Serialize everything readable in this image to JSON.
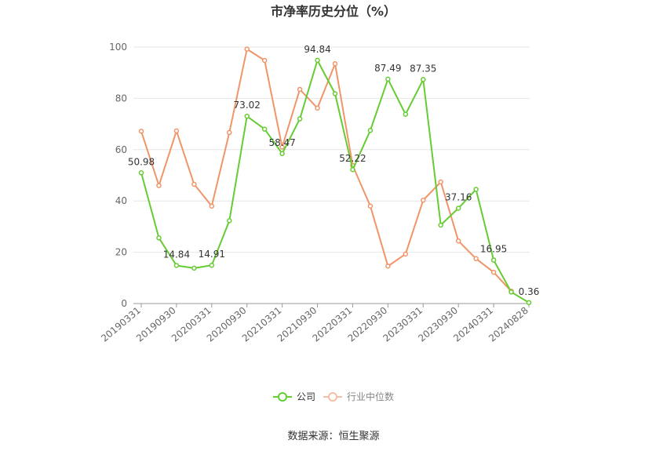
{
  "chart_data": {
    "type": "line",
    "title": "市净率历史分位（%）",
    "source": "数据来源：恒生聚源",
    "ylim": [
      0,
      100
    ],
    "yticks": [
      0,
      20,
      40,
      60,
      80,
      100
    ],
    "grid": true,
    "legend_position": "bottom",
    "x_tick_labels": [
      "20190331",
      "20190930",
      "20200331",
      "20200930",
      "20210331",
      "20210930",
      "20220331",
      "20220930",
      "20230331",
      "20230930",
      "20240331",
      "20240828"
    ],
    "x_tick_indices": [
      0,
      2,
      4,
      6,
      8,
      10,
      12,
      14,
      16,
      18,
      20,
      22
    ],
    "series": [
      {
        "name": "公司",
        "color": "#66cc33",
        "values": [
          50.98,
          25.6,
          14.84,
          13.8,
          14.91,
          32.3,
          73.02,
          68.0,
          58.47,
          72.0,
          94.84,
          81.8,
          52.22,
          67.5,
          87.49,
          73.8,
          87.35,
          30.6,
          37.16,
          44.5,
          16.95,
          4.5,
          0.36
        ],
        "labels": {
          "0": "50.98",
          "2": "14.84",
          "4": "14.91",
          "6": "73.02",
          "8": "58.47",
          "10": "94.84",
          "12": "52.22",
          "14": "87.49",
          "16": "87.35",
          "18": "37.16",
          "20": "16.95",
          "22": "0.36"
        }
      },
      {
        "name": "行业中位数",
        "color": "#f0956a",
        "values": [
          67.2,
          46.0,
          67.3,
          46.5,
          38.0,
          66.7,
          99.2,
          94.8,
          61.0,
          83.5,
          76.2,
          93.5,
          53.8,
          38.0,
          14.6,
          19.3,
          40.3,
          47.4,
          24.4,
          17.5,
          12.2,
          4.8
        ]
      }
    ]
  }
}
